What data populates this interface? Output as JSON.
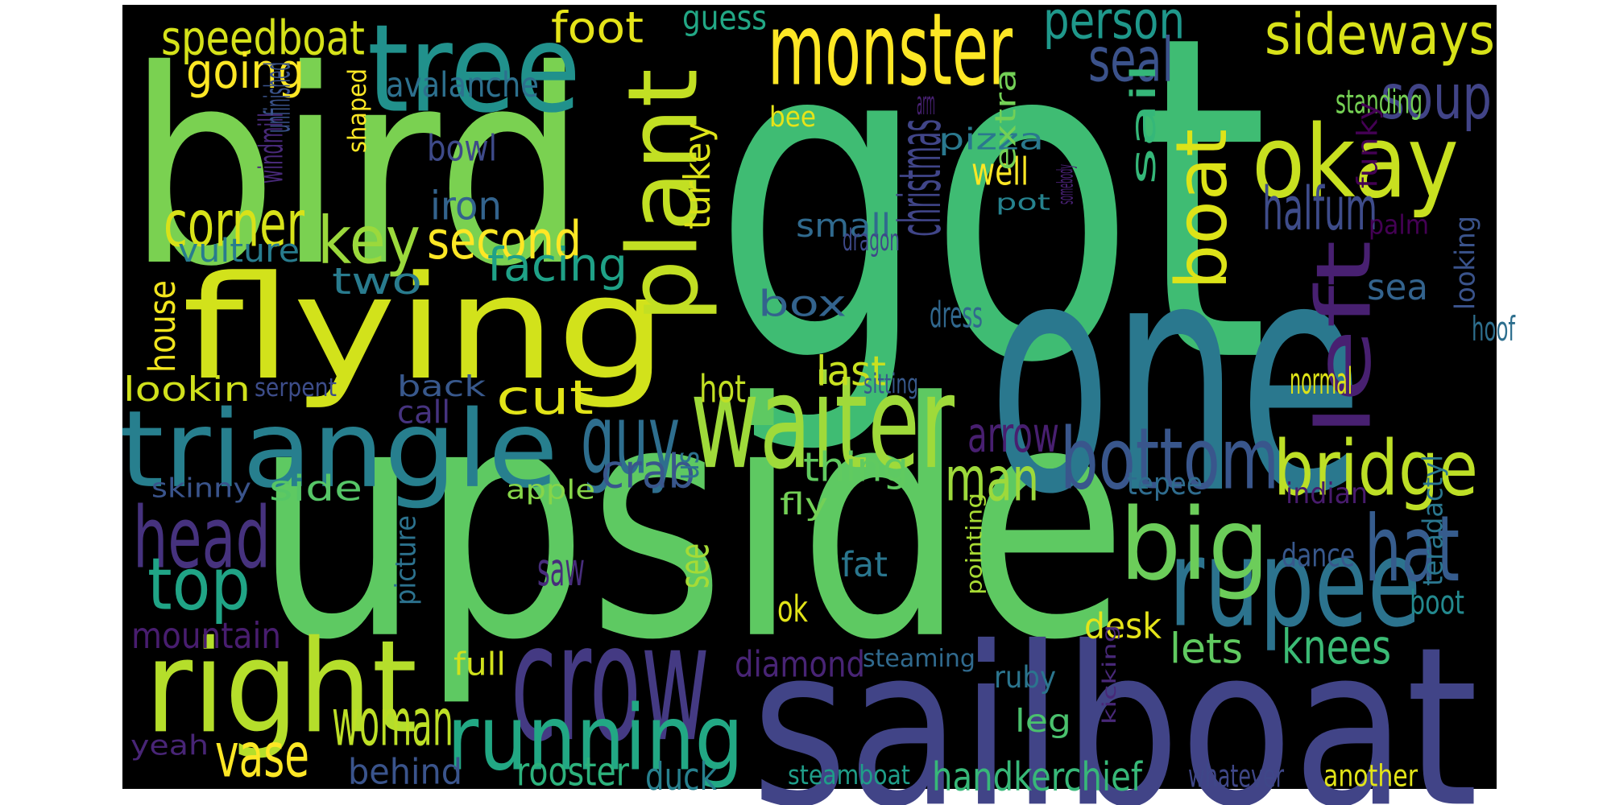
{
  "background_color": "#000000",
  "words": [
    {
      "text": "got",
      "color": "#3fbc73"
    },
    {
      "text": "upside",
      "color": "#5ec962"
    },
    {
      "text": "bird",
      "color": "#7ad151"
    },
    {
      "text": "one",
      "color": "#2a788e"
    },
    {
      "text": "sailboat",
      "color": "#414487"
    },
    {
      "text": "flying",
      "color": "#d2e21b"
    },
    {
      "text": "triangle",
      "color": "#277f8e"
    },
    {
      "text": "waiter",
      "color": "#9fda3a"
    },
    {
      "text": "right",
      "color": "#b5de2b"
    },
    {
      "text": "tree",
      "color": "#21918c"
    },
    {
      "text": "monster",
      "color": "#fde725"
    },
    {
      "text": "plant",
      "color": "#c2df23"
    },
    {
      "text": "okay",
      "color": "#c8e020"
    },
    {
      "text": "crow",
      "color": "#443a83"
    },
    {
      "text": "running",
      "color": "#22a884"
    },
    {
      "text": "rupee",
      "color": "#2c738e"
    },
    {
      "text": "big",
      "color": "#6ccd5a"
    },
    {
      "text": "left",
      "color": "#482071"
    },
    {
      "text": "bottom",
      "color": "#39568c"
    },
    {
      "text": "bridge",
      "color": "#bddf26"
    },
    {
      "text": "boat",
      "color": "#dde318"
    },
    {
      "text": "head",
      "color": "#46327e"
    },
    {
      "text": "top",
      "color": "#20a486"
    },
    {
      "text": "hat",
      "color": "#365c8d"
    },
    {
      "text": "guy",
      "color": "#2e6e8e"
    },
    {
      "text": "key",
      "color": "#9bd93c"
    },
    {
      "text": "sideways",
      "color": "#d8e219"
    },
    {
      "text": "speedboat",
      "color": "#d5e21a"
    },
    {
      "text": "person",
      "color": "#1f988b"
    },
    {
      "text": "soup",
      "color": "#414487"
    },
    {
      "text": "seal",
      "color": "#3b528b"
    },
    {
      "text": "going",
      "color": "#fde725"
    },
    {
      "text": "foot",
      "color": "#e5e419"
    },
    {
      "text": "guess",
      "color": "#22a785"
    },
    {
      "text": "halfum",
      "color": "#3e4c8a"
    },
    {
      "text": "second",
      "color": "#fde725"
    },
    {
      "text": "corner",
      "color": "#d8e219"
    },
    {
      "text": "facing",
      "color": "#1fa187"
    },
    {
      "text": "christmas",
      "color": "#404588"
    },
    {
      "text": "house",
      "color": "#f1e51d"
    },
    {
      "text": "vulture",
      "color": "#287c8e"
    },
    {
      "text": "avalanche",
      "color": "#2d708e"
    },
    {
      "text": "bowl",
      "color": "#3e4a89"
    },
    {
      "text": "iron",
      "color": "#33638d"
    },
    {
      "text": "pizza",
      "color": "#2a788e"
    },
    {
      "text": "well",
      "color": "#fde725"
    },
    {
      "text": "small",
      "color": "#306a8e"
    },
    {
      "text": "turkey",
      "color": "#dde318"
    },
    {
      "text": "shaped",
      "color": "#fde725"
    },
    {
      "text": "dragon",
      "color": "#3e4989"
    },
    {
      "text": "windmill",
      "color": "#482979"
    },
    {
      "text": "unfinished",
      "color": "#3a538b"
    },
    {
      "text": "sail",
      "color": "#35b779"
    },
    {
      "text": "standing",
      "color": "#75d054"
    },
    {
      "text": "funky",
      "color": "#440154"
    },
    {
      "text": "palm",
      "color": "#440154"
    },
    {
      "text": "bee",
      "color": "#e5e419"
    },
    {
      "text": "arm",
      "color": "#482173"
    },
    {
      "text": "pot",
      "color": "#26828e"
    },
    {
      "text": "somebody",
      "color": "#482173"
    },
    {
      "text": "extra",
      "color": "#73d056"
    },
    {
      "text": "box",
      "color": "#33638d"
    },
    {
      "text": "dress",
      "color": "#31688e"
    },
    {
      "text": "two",
      "color": "#297b8e"
    },
    {
      "text": "last",
      "color": "#c8e020"
    },
    {
      "text": "cut",
      "color": "#e2e418"
    },
    {
      "text": "hot",
      "color": "#c2df23"
    },
    {
      "text": "sitting",
      "color": "#38598c"
    },
    {
      "text": "lookin",
      "color": "#d0e11c"
    },
    {
      "text": "serpent",
      "color": "#3d4d8a"
    },
    {
      "text": "back",
      "color": "#38588c"
    },
    {
      "text": "call",
      "color": "#46337f"
    },
    {
      "text": "normal",
      "color": "#dde318"
    },
    {
      "text": "sea",
      "color": "#33638d"
    },
    {
      "text": "looking",
      "color": "#3a538b"
    },
    {
      "text": "hoof",
      "color": "#2e6f8e"
    },
    {
      "text": "arrow",
      "color": "#481f70"
    },
    {
      "text": "thing",
      "color": "#60ca60"
    },
    {
      "text": "man",
      "color": "#9dd93b"
    },
    {
      "text": "tepee",
      "color": "#2f6c8e"
    },
    {
      "text": "side",
      "color": "#56c667"
    },
    {
      "text": "crab",
      "color": "#39568c"
    },
    {
      "text": "apple",
      "color": "#86d549"
    },
    {
      "text": "skinny",
      "color": "#3a548c"
    },
    {
      "text": "us",
      "color": "#2c728e"
    },
    {
      "text": "fly",
      "color": "#73d056"
    },
    {
      "text": "indian",
      "color": "#481b6d"
    },
    {
      "text": "teradactyl",
      "color": "#2a768e"
    },
    {
      "text": "pointing",
      "color": "#a8db34"
    },
    {
      "text": "dance",
      "color": "#38588c"
    },
    {
      "text": "picture",
      "color": "#2c728e"
    },
    {
      "text": "see",
      "color": "#a5db36"
    },
    {
      "text": "fat",
      "color": "#2a768e"
    },
    {
      "text": "saw",
      "color": "#472d7b"
    },
    {
      "text": "ok",
      "color": "#e2e418"
    },
    {
      "text": "desk",
      "color": "#e5e419"
    },
    {
      "text": "boot",
      "color": "#23898e"
    },
    {
      "text": "mountain",
      "color": "#481d6f"
    },
    {
      "text": "knees",
      "color": "#3bbb75"
    },
    {
      "text": "lets",
      "color": "#60ca60"
    },
    {
      "text": "diamond",
      "color": "#482475"
    },
    {
      "text": "steaming",
      "color": "#306a8e"
    },
    {
      "text": "full",
      "color": "#d0e11c"
    },
    {
      "text": "ruby",
      "color": "#2b758e"
    },
    {
      "text": "kicking",
      "color": "#482878"
    },
    {
      "text": "woman",
      "color": "#bddf26"
    },
    {
      "text": "leg",
      "color": "#4ac16d"
    },
    {
      "text": "vase",
      "color": "#fde725"
    },
    {
      "text": "yeah",
      "color": "#482576"
    },
    {
      "text": "behind",
      "color": "#3a548c"
    },
    {
      "text": "rooster",
      "color": "#2db27d"
    },
    {
      "text": "duck",
      "color": "#27808e"
    },
    {
      "text": "handkerchief",
      "color": "#37b878"
    },
    {
      "text": "steamboat",
      "color": "#1f9e89"
    },
    {
      "text": "whatever",
      "color": "#3f4788"
    },
    {
      "text": "another",
      "color": "#e2e418"
    }
  ]
}
